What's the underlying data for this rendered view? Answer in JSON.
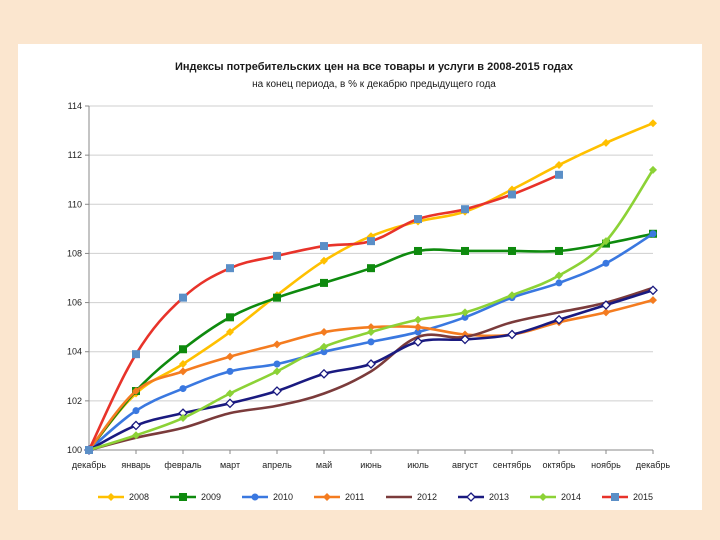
{
  "chart_data": {
    "type": "line",
    "title": "Индексы потребительских цен на все товары и услуги в 2008-2015 годах",
    "subtitle": "на конец периода, в % к декабрю предыдущего года",
    "xlabel": "",
    "ylabel": "",
    "ylim": [
      100,
      114
    ],
    "yticks": [
      100,
      102,
      104,
      106,
      108,
      110,
      112,
      114
    ],
    "grid": true,
    "legend_position": "bottom",
    "categories": [
      "декабрь",
      "январь",
      "февраль",
      "март",
      "апрель",
      "май",
      "июнь",
      "июль",
      "август",
      "сентябрь",
      "октябрь",
      "ноябрь",
      "декабрь"
    ],
    "series": [
      {
        "name": "2008",
        "color": "#ffc000",
        "marker": "diamond",
        "values": [
          100,
          102.3,
          103.5,
          104.8,
          106.3,
          107.7,
          108.7,
          109.3,
          109.7,
          110.6,
          111.6,
          112.5,
          113.3
        ]
      },
      {
        "name": "2009",
        "color": "#0e8a0e",
        "marker": "square",
        "values": [
          100,
          102.4,
          104.1,
          105.4,
          106.2,
          106.8,
          107.4,
          108.1,
          108.1,
          108.1,
          108.1,
          108.4,
          108.8
        ]
      },
      {
        "name": "2010",
        "color": "#3a78e0",
        "marker": "circle",
        "values": [
          100,
          101.6,
          102.5,
          103.2,
          103.5,
          104.0,
          104.4,
          104.8,
          105.4,
          106.2,
          106.8,
          107.6,
          108.8
        ]
      },
      {
        "name": "2011",
        "color": "#f47c20",
        "marker": "diamond",
        "values": [
          100,
          102.4,
          103.2,
          103.8,
          104.3,
          104.8,
          105.0,
          105.0,
          104.7,
          104.7,
          105.2,
          105.6,
          106.1
        ]
      },
      {
        "name": "2012",
        "color": "#7b3b3b",
        "marker": "none",
        "values": [
          100,
          100.5,
          100.9,
          101.5,
          101.8,
          102.3,
          103.2,
          104.6,
          104.6,
          105.2,
          105.6,
          106.0,
          106.6
        ]
      },
      {
        "name": "2013",
        "color": "#1a1a80",
        "marker": "diamond-open",
        "values": [
          100,
          101.0,
          101.5,
          101.9,
          102.4,
          103.1,
          103.5,
          104.4,
          104.5,
          104.7,
          105.3,
          105.9,
          106.5
        ]
      },
      {
        "name": "2014",
        "color": "#8cd236",
        "marker": "diamond",
        "values": [
          100,
          100.6,
          101.3,
          102.3,
          103.2,
          104.2,
          104.8,
          105.3,
          105.6,
          106.3,
          107.1,
          108.5,
          111.4
        ]
      },
      {
        "name": "2015",
        "color": "#e8332a",
        "marker": "square",
        "marker_color": "#5b8fc7",
        "values": [
          100,
          103.9,
          106.2,
          107.4,
          107.9,
          108.3,
          108.5,
          109.4,
          109.8,
          110.4,
          111.2,
          null,
          null
        ]
      }
    ]
  }
}
